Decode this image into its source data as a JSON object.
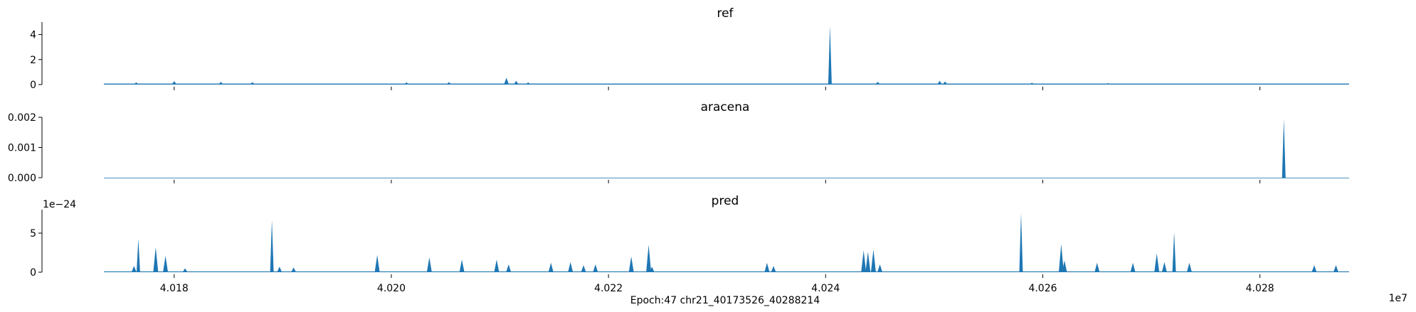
{
  "chart_data": {
    "type": "area",
    "color": "#1f77b4",
    "xlabel": "Epoch:47 chr21_40173526_40288214",
    "x_offset_text": "1e7",
    "xlim": [
      40173526,
      40288214
    ],
    "x_ticks": [
      {
        "value": 40180000,
        "label": "4.018"
      },
      {
        "value": 40200000,
        "label": "4.020"
      },
      {
        "value": 40220000,
        "label": "4.022"
      },
      {
        "value": 40240000,
        "label": "4.024"
      },
      {
        "value": 40260000,
        "label": "4.026"
      },
      {
        "value": 40280000,
        "label": "4.028"
      }
    ],
    "panels": [
      {
        "title": "ref",
        "ylim": [
          0,
          5
        ],
        "y_ticks": [
          {
            "value": 0,
            "label": "0"
          },
          {
            "value": 2,
            "label": "2"
          },
          {
            "value": 4,
            "label": "4"
          }
        ],
        "y_offset_text": "",
        "baseline": 0.08,
        "x": [
          40176500,
          40180000,
          40184300,
          40187200,
          40201400,
          40205300,
          40210600,
          40211500,
          40212600,
          40240400,
          40244800,
          40250500,
          40251000,
          40259000,
          40266000
        ],
        "y": [
          0.18,
          0.28,
          0.22,
          0.2,
          0.18,
          0.2,
          0.55,
          0.3,
          0.18,
          4.7,
          0.22,
          0.3,
          0.25,
          0.15,
          0.12
        ]
      },
      {
        "title": "aracena",
        "ylim": [
          0,
          0.002
        ],
        "y_ticks": [
          {
            "value": 0,
            "label": "0.000"
          },
          {
            "value": 0.001,
            "label": "0.001"
          },
          {
            "value": 0.002,
            "label": "0.002"
          }
        ],
        "y_offset_text": "",
        "baseline": 0,
        "x": [
          40282200
        ],
        "y": [
          0.00195
        ]
      },
      {
        "title": "pred",
        "ylim": [
          0,
          8
        ],
        "y_ticks": [
          {
            "value": 0,
            "label": "0"
          },
          {
            "value": 5,
            "label": "5"
          }
        ],
        "y_offset_text": "1e−24",
        "baseline": 0.1,
        "x": [
          40176300,
          40176700,
          40178300,
          40179200,
          40181000,
          40189000,
          40189700,
          40191000,
          40198700,
          40203500,
          40206500,
          40209700,
          40210800,
          40214700,
          40216500,
          40217700,
          40218800,
          40222100,
          40223700,
          40224000,
          40234600,
          40235200,
          40243500,
          40243900,
          40244400,
          40245000,
          40258000,
          40261700,
          40262000,
          40265000,
          40268300,
          40270500,
          40271200,
          40272100,
          40273500,
          40285000,
          40287000
        ],
        "y": [
          0.8,
          4.3,
          3.2,
          2.1,
          0.5,
          6.7,
          0.7,
          0.6,
          2.2,
          1.9,
          1.6,
          1.6,
          1.0,
          1.2,
          1.3,
          0.9,
          1.0,
          2.0,
          3.5,
          0.7,
          1.2,
          0.8,
          2.8,
          2.6,
          2.9,
          1.0,
          7.6,
          3.6,
          1.5,
          1.2,
          1.2,
          2.4,
          1.3,
          5.1,
          1.2,
          0.9,
          0.9
        ]
      }
    ]
  }
}
